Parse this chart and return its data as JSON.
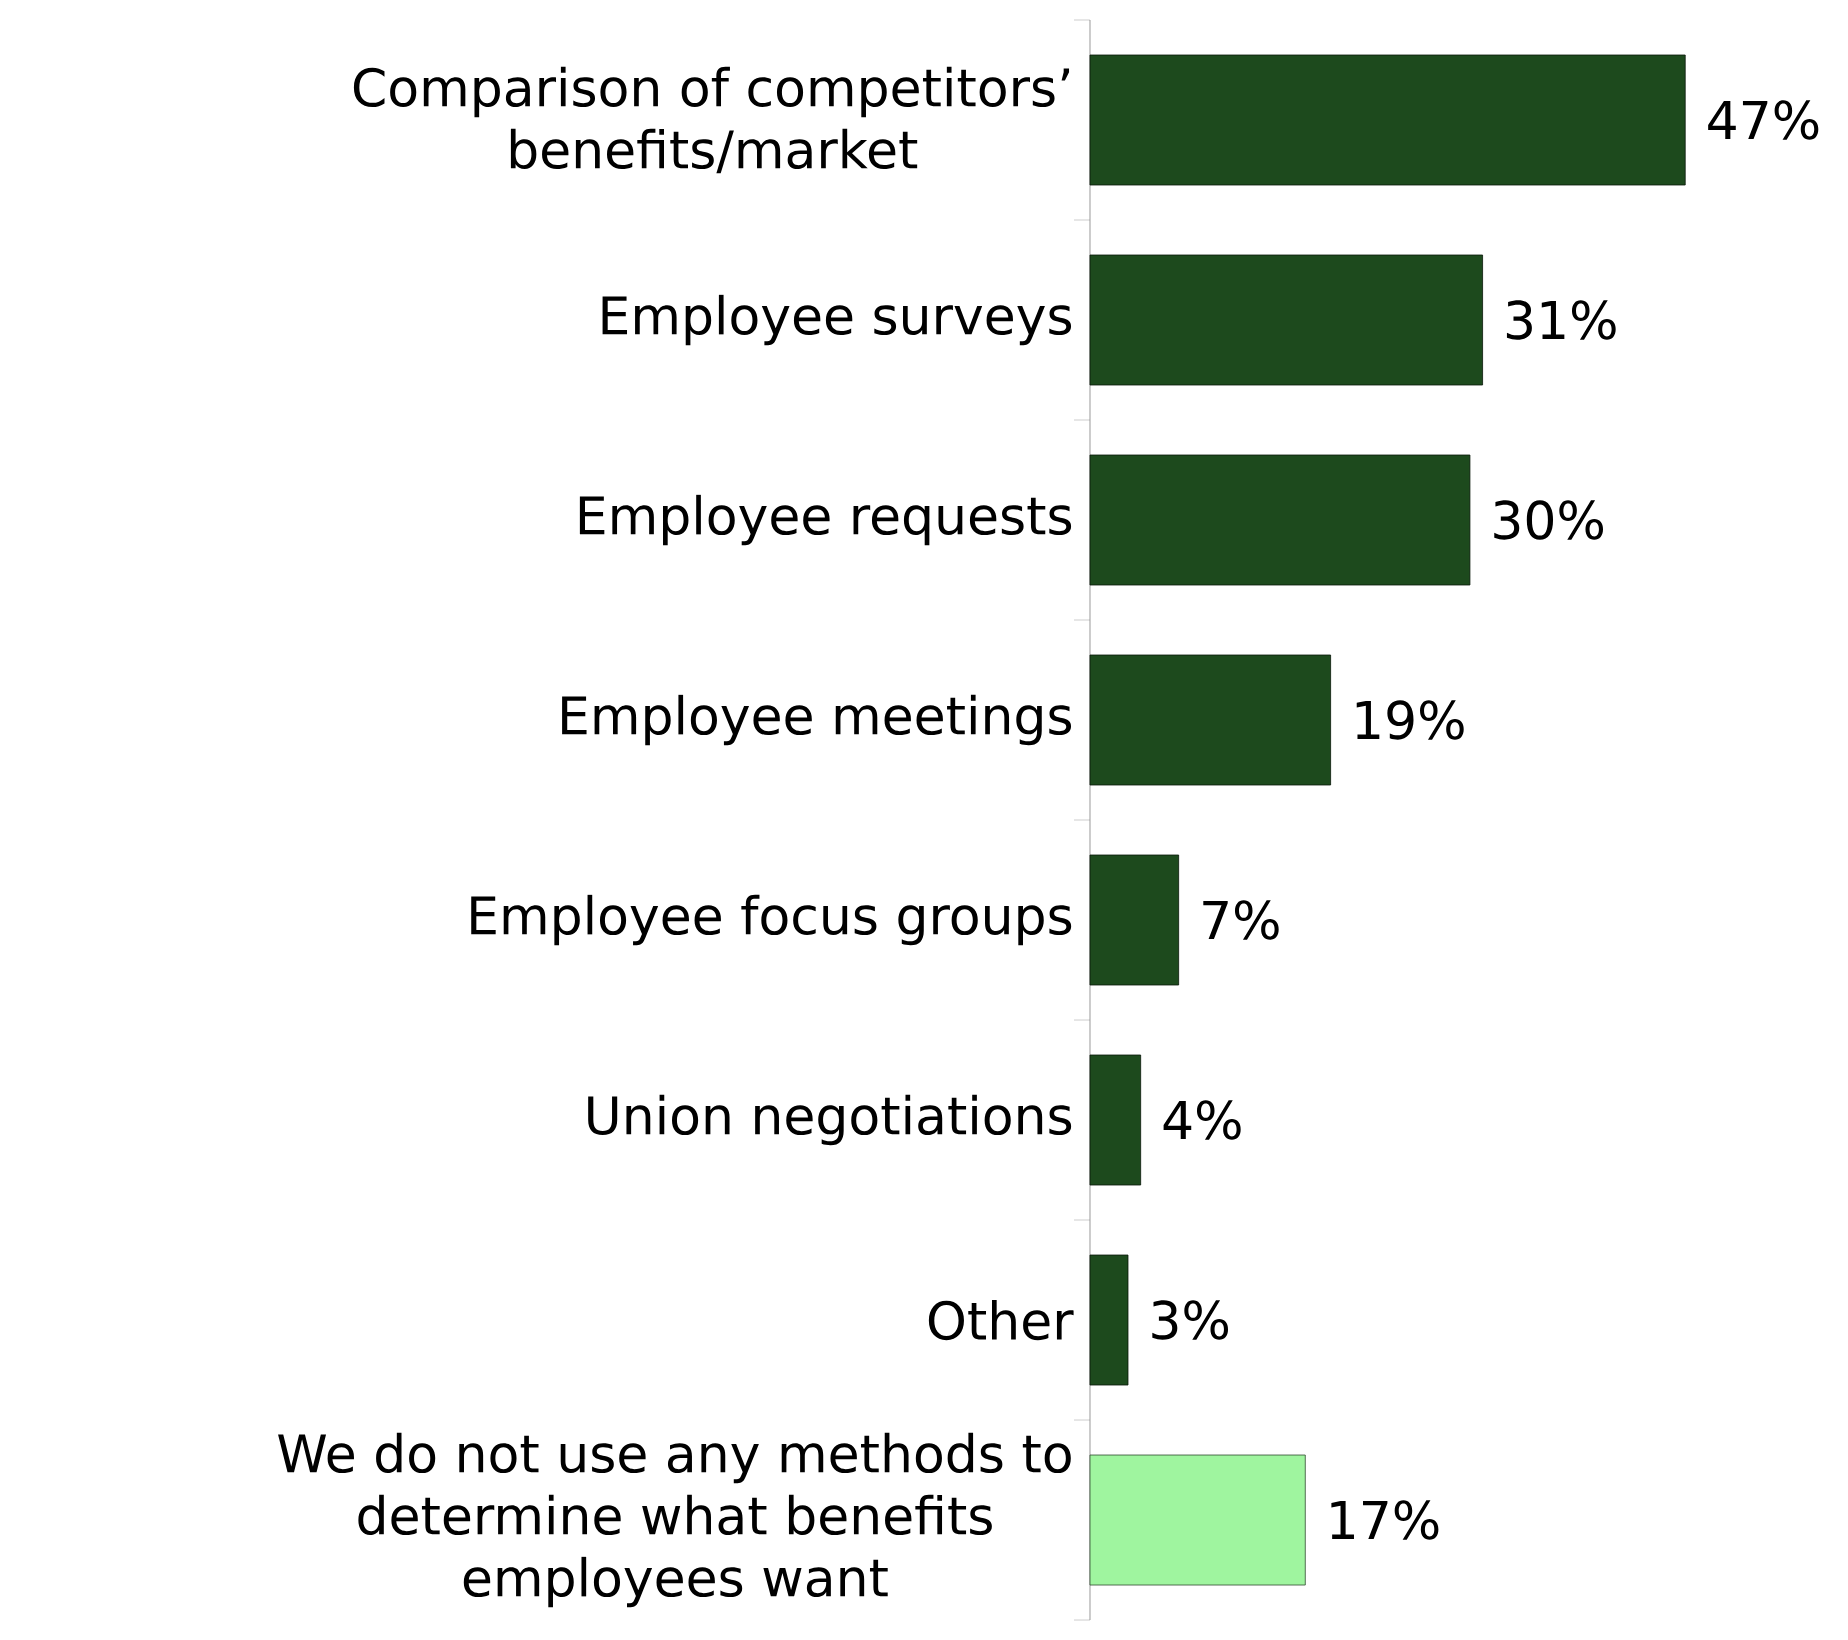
{
  "chart_data": {
    "type": "bar",
    "orientation": "horizontal",
    "tick_labels": "y",
    "categories": [
      "Comparison of competitors’ benefits/market",
      "Employee surveys",
      "Employee requests",
      "Employee meetings",
      "Employee focus groups",
      "Union negotiations",
      "Other",
      "We do not use any methods to determine what benefits employees want"
    ],
    "values": [
      47,
      31,
      30,
      19,
      7,
      4,
      3,
      17
    ],
    "colors": [
      "#1d4a1d",
      "#1d4a1d",
      "#1d4a1d",
      "#1d4a1d",
      "#1d4a1d",
      "#1d4a1d",
      "#1d4a1d",
      "#9ff59f"
    ],
    "value_labels": [
      "47%",
      "31%",
      "30%",
      "19%",
      "7%",
      "4%",
      "3%",
      "17%"
    ]
  }
}
